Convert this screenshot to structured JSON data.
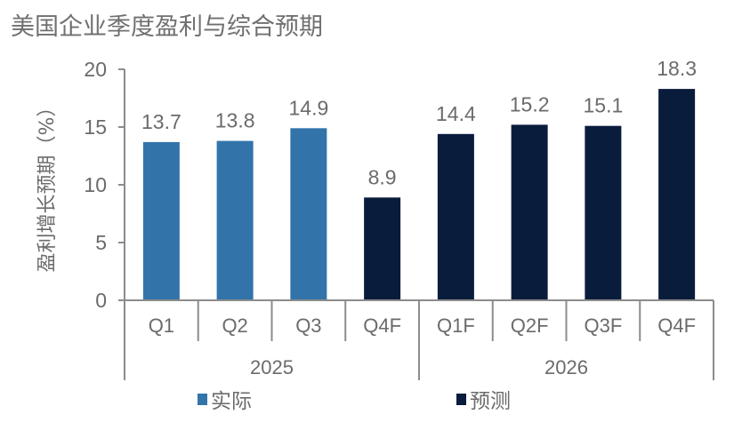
{
  "chart_data": {
    "type": "bar",
    "title": "美国企业季度盈利与综合预期",
    "ylabel": "盈利增长预期（%）",
    "xlabel": "",
    "ylim": [
      0,
      20
    ],
    "yticks": [
      0,
      5,
      10,
      15,
      20
    ],
    "grid": false,
    "categories": [
      "Q1",
      "Q2",
      "Q3",
      "Q4F",
      "Q1F",
      "Q2F",
      "Q3F",
      "Q4F"
    ],
    "groups": [
      {
        "label": "2025",
        "span": [
          0,
          3
        ]
      },
      {
        "label": "2026",
        "span": [
          4,
          7
        ]
      }
    ],
    "values": [
      13.7,
      13.8,
      14.9,
      8.9,
      14.4,
      15.2,
      15.1,
      18.3
    ],
    "data_labels": [
      "13.7",
      "13.8",
      "14.9",
      "8.9",
      "14.4",
      "15.2",
      "15.1",
      "18.3"
    ],
    "series_assignment": [
      "actual",
      "actual",
      "actual",
      "forecast",
      "forecast",
      "forecast",
      "forecast",
      "forecast"
    ],
    "series": [
      {
        "key": "actual",
        "name": "实际",
        "color": "#3274aa"
      },
      {
        "key": "forecast",
        "name": "预测",
        "color": "#0a1c3c"
      }
    ],
    "legend_position": "bottom"
  }
}
